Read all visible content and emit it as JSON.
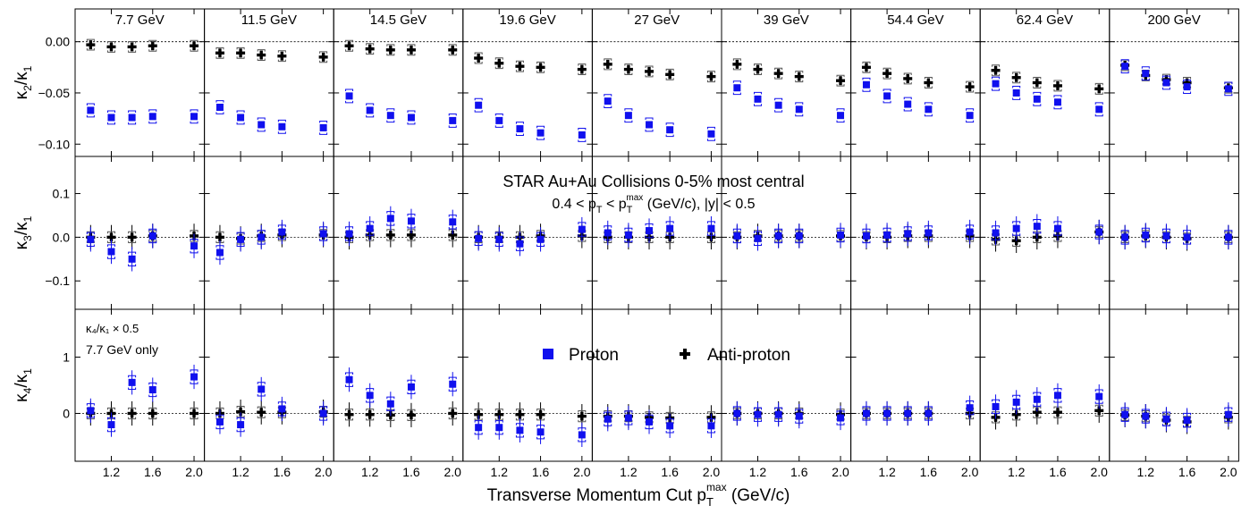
{
  "chart_data": {
    "type": "scatter",
    "energies": [
      "7.7 GeV",
      "11.5 GeV",
      "14.5 GeV",
      "19.6 GeV",
      "27 GeV",
      "39 GeV",
      "54.4 GeV",
      "62.4 GeV",
      "200 GeV"
    ],
    "x": [
      1.0,
      1.2,
      1.4,
      1.6,
      2.0
    ],
    "xlim": [
      0.85,
      2.1
    ],
    "xticks": [
      1.2,
      1.6,
      2.0
    ],
    "xtick_labels": [
      "1.2",
      "1.6",
      "2.0"
    ],
    "xlabel_main": "Transverse Momentum Cut p",
    "xlabel_sub": "T",
    "xlabel_sup": "max",
    "xlabel_tail": " (GeV/c)",
    "colors": {
      "proton": "#1010ee",
      "antiproton": "#000000"
    },
    "legend": {
      "proton": "Proton",
      "antiproton": "Anti-proton"
    },
    "annotation": {
      "line1": "STAR Au+Au Collisions 0-5% most central",
      "line2_a": "0.4 < p",
      "line2_sub": "T",
      "line2_b": " < p",
      "line2_sub2": "T",
      "line2_sup2": "max",
      "line2_c": " (GeV/c), |y| < 0.5"
    },
    "note_r4": {
      "line1": "κ₄/κ₁ × 0.5",
      "line2": "7.7 GeV only"
    },
    "rows": [
      {
        "ylabel_main": "κ",
        "ylabel_sub": "2",
        "ylabel_mid": "/κ",
        "ylabel_sub2": "1",
        "ylim": [
          -0.112,
          0.032
        ],
        "yticks": [
          0.0,
          -0.05,
          -0.1
        ],
        "ytick_labels": [
          "0.00",
          "−0.05",
          "−0.10"
        ],
        "proton": [
          [
            -0.067,
            -0.074,
            -0.074,
            -0.073,
            -0.073
          ],
          [
            -0.064,
            -0.074,
            -0.081,
            -0.083,
            -0.084
          ],
          [
            -0.053,
            -0.067,
            -0.072,
            -0.074,
            -0.077
          ],
          [
            -0.062,
            -0.077,
            -0.085,
            -0.089,
            -0.091
          ],
          [
            -0.058,
            -0.072,
            -0.081,
            -0.086,
            -0.09
          ],
          [
            -0.045,
            -0.056,
            -0.062,
            -0.066,
            -0.072
          ],
          [
            -0.042,
            -0.053,
            -0.061,
            -0.066,
            -0.072
          ],
          [
            -0.041,
            -0.05,
            -0.056,
            -0.059,
            -0.066
          ],
          [
            -0.024,
            -0.031,
            -0.04,
            -0.044,
            -0.046
          ]
        ],
        "antiproton": [
          [
            -0.003,
            -0.005,
            -0.005,
            -0.004,
            -0.004
          ],
          [
            -0.011,
            -0.011,
            -0.013,
            -0.014,
            -0.015
          ],
          [
            -0.004,
            -0.007,
            -0.008,
            -0.008,
            -0.008
          ],
          [
            -0.016,
            -0.021,
            -0.024,
            -0.025,
            -0.027
          ],
          [
            -0.022,
            -0.027,
            -0.029,
            -0.032,
            -0.034
          ],
          [
            -0.022,
            -0.027,
            -0.031,
            -0.034,
            -0.038
          ],
          [
            -0.025,
            -0.031,
            -0.036,
            -0.04,
            -0.044
          ],
          [
            -0.028,
            -0.035,
            -0.04,
            -0.043,
            -0.046
          ],
          [
            -0.023,
            -0.033,
            -0.037,
            -0.04,
            -0.045
          ]
        ]
      },
      {
        "ylabel_main": "κ",
        "ylabel_sub": "3",
        "ylabel_mid": "/κ",
        "ylabel_sub2": "1",
        "ylim": [
          -0.165,
          0.185
        ],
        "yticks": [
          0.1,
          0.0,
          -0.1
        ],
        "ytick_labels": [
          "0.1",
          "0.0",
          "−0.1"
        ],
        "proton": [
          [
            -0.005,
            -0.033,
            -0.05,
            0.003,
            -0.02
          ],
          [
            -0.035,
            -0.005,
            0.0,
            0.012,
            0.008
          ],
          [
            0.008,
            0.02,
            0.043,
            0.037,
            0.035
          ],
          [
            -0.003,
            -0.005,
            -0.015,
            -0.005,
            0.018
          ],
          [
            0.01,
            0.005,
            0.015,
            0.02,
            0.02
          ],
          [
            0.003,
            -0.003,
            0.003,
            0.003,
            0.005
          ],
          [
            0.003,
            0.005,
            0.008,
            0.01,
            0.012
          ],
          [
            0.01,
            0.02,
            0.025,
            0.02,
            0.012
          ],
          [
            0.0,
            0.005,
            0.003,
            0.0,
            0.0
          ]
        ],
        "antiproton": [
          [
            0.0,
            0.0,
            0.0,
            0.003,
            0.003
          ],
          [
            0.0,
            -0.003,
            0.003,
            0.005,
            0.005
          ],
          [
            0.0,
            0.005,
            0.005,
            0.005,
            0.005
          ],
          [
            0.0,
            0.0,
            0.0,
            0.003,
            0.003
          ],
          [
            0.0,
            0.0,
            0.0,
            0.0,
            0.0
          ],
          [
            0.0,
            0.003,
            0.003,
            0.003,
            0.003
          ],
          [
            0.0,
            0.0,
            0.003,
            0.003,
            0.003
          ],
          [
            -0.005,
            -0.008,
            0.0,
            0.003,
            0.012
          ],
          [
            0.0,
            0.003,
            0.0,
            -0.003,
            0.0
          ]
        ]
      },
      {
        "ylabel_main": "κ",
        "ylabel_sub": "4",
        "ylabel_mid": "/κ",
        "ylabel_sub2": "1",
        "ylim": [
          -0.85,
          1.85
        ],
        "yticks": [
          1.0,
          0.0
        ],
        "ytick_labels": [
          "1",
          "0"
        ],
        "proton": [
          [
            0.05,
            -0.2,
            0.55,
            0.42,
            0.65
          ],
          [
            -0.15,
            -0.2,
            0.43,
            0.08,
            0.0
          ],
          [
            0.6,
            0.32,
            0.17,
            0.47,
            0.52
          ],
          [
            -0.25,
            -0.25,
            -0.3,
            -0.33,
            -0.38
          ],
          [
            -0.1,
            -0.08,
            -0.15,
            -0.22,
            -0.22
          ],
          [
            0.0,
            -0.02,
            -0.02,
            -0.05,
            -0.08
          ],
          [
            0.0,
            0.0,
            0.0,
            0.0,
            0.1
          ],
          [
            0.12,
            0.2,
            0.25,
            0.32,
            0.3
          ],
          [
            -0.02,
            -0.05,
            -0.1,
            -0.12,
            -0.02
          ]
        ],
        "antiproton": [
          [
            0.0,
            0.0,
            0.0,
            0.0,
            0.0
          ],
          [
            0.0,
            0.03,
            0.02,
            0.02,
            0.03
          ],
          [
            -0.02,
            -0.02,
            -0.03,
            -0.03,
            0.0
          ],
          [
            -0.02,
            -0.02,
            -0.02,
            -0.02,
            -0.05
          ],
          [
            -0.05,
            -0.05,
            -0.07,
            -0.08,
            -0.07
          ],
          [
            0.0,
            0.0,
            0.0,
            0.0,
            -0.02
          ],
          [
            0.0,
            0.0,
            0.0,
            0.0,
            0.0
          ],
          [
            -0.07,
            -0.02,
            0.02,
            0.02,
            0.05
          ],
          [
            -0.03,
            -0.05,
            -0.12,
            -0.15,
            -0.07
          ]
        ]
      }
    ]
  }
}
